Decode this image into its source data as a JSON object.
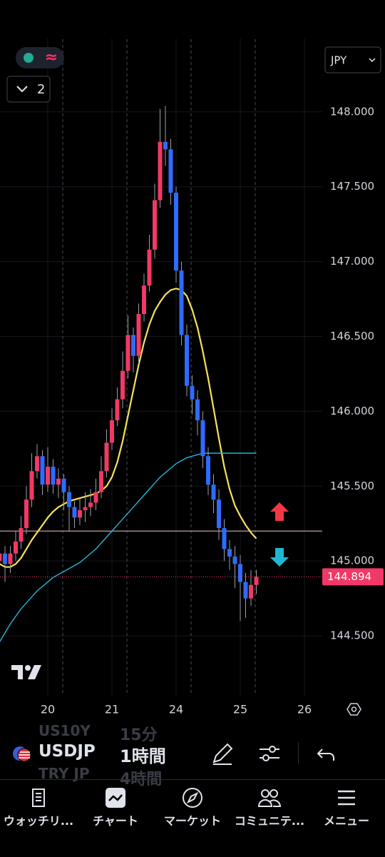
{
  "chart_data": {
    "type": "candlestick",
    "categories": [
      null,
      null,
      null,
      null,
      null,
      null,
      null,
      null,
      null,
      "20",
      null,
      null,
      null,
      null,
      null,
      null,
      null,
      null,
      null,
      null,
      null,
      "21",
      null,
      null,
      null,
      null,
      null,
      null,
      null,
      null,
      null,
      null,
      null,
      "24",
      null,
      null,
      null,
      null,
      null,
      null,
      null,
      null,
      null,
      null,
      null,
      "25",
      null,
      null,
      null,
      null,
      null,
      null,
      null,
      null,
      null,
      null,
      null,
      "26",
      null,
      null
    ],
    "open": [
      145.0,
      145.05,
      144.98,
      145.05,
      145.13,
      145.22,
      145.41,
      145.6,
      145.7,
      145.51,
      145.63,
      145.51,
      145.55,
      145.46,
      145.36,
      145.29,
      145.34,
      145.36,
      145.39,
      145.46,
      145.6,
      145.79,
      145.94,
      146.08,
      146.27,
      146.51,
      146.37,
      146.65,
      146.84,
      147.08,
      147.41,
      147.8,
      147.75,
      147.46,
      146.94,
      146.51,
      146.17,
      146.08,
      145.94,
      145.7,
      145.51,
      145.41,
      145.22,
      145.08,
      145.03,
      144.98,
      144.86,
      144.75,
      144.84,
      null,
      null,
      null,
      null,
      null,
      null,
      null,
      null,
      null,
      null,
      null
    ],
    "high": [
      145.12,
      145.1,
      145.1,
      145.2,
      145.3,
      145.5,
      145.72,
      145.78,
      145.74,
      145.76,
      145.68,
      145.62,
      145.58,
      145.5,
      145.4,
      145.42,
      145.46,
      145.48,
      145.55,
      145.7,
      145.88,
      146.02,
      146.16,
      146.4,
      146.64,
      146.56,
      146.72,
      146.92,
      147.18,
      147.52,
      148.02,
      148.04,
      147.82,
      147.5,
      147.0,
      146.58,
      146.24,
      146.14,
      146.0,
      145.76,
      145.58,
      145.48,
      145.28,
      145.14,
      145.1,
      145.04,
      144.92,
      144.94,
      144.94,
      null,
      null,
      null,
      null,
      null,
      null,
      null,
      null,
      null,
      null,
      null
    ],
    "low": [
      144.8,
      144.86,
      144.92,
      145.0,
      145.08,
      145.18,
      145.36,
      145.55,
      145.44,
      145.46,
      145.45,
      145.42,
      145.34,
      145.2,
      145.22,
      145.24,
      145.26,
      145.3,
      145.34,
      145.42,
      145.56,
      145.74,
      145.9,
      146.02,
      146.22,
      146.26,
      146.32,
      146.6,
      146.8,
      147.02,
      147.36,
      147.64,
      147.38,
      146.86,
      146.44,
      146.1,
      145.98,
      145.84,
      145.62,
      145.44,
      145.32,
      145.14,
      145.0,
      144.94,
      144.82,
      144.6,
      144.62,
      144.7,
      144.78,
      null,
      null,
      null,
      null,
      null,
      null,
      null,
      null,
      null,
      null,
      null
    ],
    "close": [
      145.05,
      144.98,
      145.05,
      145.13,
      145.22,
      145.41,
      145.6,
      145.7,
      145.51,
      145.63,
      145.51,
      145.55,
      145.46,
      145.36,
      145.29,
      145.34,
      145.36,
      145.39,
      145.46,
      145.6,
      145.79,
      145.94,
      146.08,
      146.27,
      146.51,
      146.37,
      146.65,
      146.84,
      147.08,
      147.41,
      147.8,
      147.75,
      147.46,
      146.94,
      146.51,
      146.17,
      146.08,
      145.94,
      145.7,
      145.51,
      145.41,
      145.22,
      145.08,
      145.03,
      144.98,
      144.86,
      144.75,
      144.84,
      144.894,
      null,
      null,
      null,
      null,
      null,
      null,
      null,
      null,
      null,
      null,
      null
    ],
    "up_color": "#f23866",
    "down_color": "#2f6bff",
    "lines": [
      {
        "color": "#f7e35a",
        "values": [
          144.98,
          144.96,
          144.96,
          144.98,
          145.02,
          145.08,
          145.14,
          145.19,
          145.24,
          145.29,
          145.33,
          145.36,
          145.38,
          145.4,
          145.41,
          145.42,
          145.43,
          145.44,
          145.45,
          145.47,
          145.5,
          145.56,
          145.66,
          145.8,
          145.97,
          146.14,
          146.31,
          146.46,
          146.58,
          146.67,
          146.73,
          146.78,
          146.81,
          146.82,
          146.81,
          146.77,
          146.68,
          146.56,
          146.4,
          146.22,
          146.02,
          145.82,
          145.63,
          145.48,
          145.37,
          145.3,
          145.24,
          145.19,
          145.15,
          null,
          null,
          null,
          null,
          null,
          null,
          null,
          null,
          null,
          null,
          null
        ]
      },
      {
        "color": "#26b5d9",
        "values": [
          144.46,
          144.52,
          144.58,
          144.63,
          144.68,
          144.72,
          144.76,
          144.8,
          144.83,
          144.86,
          144.89,
          144.91,
          144.93,
          144.95,
          144.97,
          144.99,
          145.02,
          145.05,
          145.08,
          145.12,
          145.16,
          145.2,
          145.24,
          145.28,
          145.32,
          145.36,
          145.4,
          145.44,
          145.48,
          145.52,
          145.56,
          145.59,
          145.62,
          145.65,
          145.67,
          145.69,
          145.7,
          145.71,
          145.72,
          145.72,
          145.72,
          145.72,
          145.72,
          145.72,
          145.72,
          145.72,
          145.72,
          145.72,
          145.72,
          null,
          null,
          null,
          null,
          null,
          null,
          null,
          null,
          null,
          null,
          null
        ]
      }
    ],
    "hline": {
      "value": 145.2,
      "color": "#c99a9a"
    },
    "last_price": 144.894,
    "ylim": [
      144.1,
      148.49
    ],
    "yticks": [
      {
        "value": 144.5,
        "label": "144.500"
      },
      {
        "value": 145,
        "label": "145.000"
      },
      {
        "value": 145.5,
        "label": "145.500"
      },
      {
        "value": 146,
        "label": "146.000"
      },
      {
        "value": 146.5,
        "label": "146.500"
      },
      {
        "value": 147,
        "label": "147.000"
      },
      {
        "value": 147.5,
        "label": "147.500"
      },
      {
        "value": 148,
        "label": "148.000"
      }
    ],
    "grid": true
  },
  "ui": {
    "indicator_icon": "≈",
    "indicator_count": "2",
    "currency": "JPY",
    "symbol_prev": "US10Y",
    "symbol": "USDJP",
    "symbol_next": "TRY JP",
    "interval_prev": "15分",
    "interval": "1時間",
    "interval_next": "4時間",
    "nav": [
      "ウォッチリ...",
      "チャート",
      "マーケット",
      "コミュニテ...",
      "メニュー"
    ]
  }
}
